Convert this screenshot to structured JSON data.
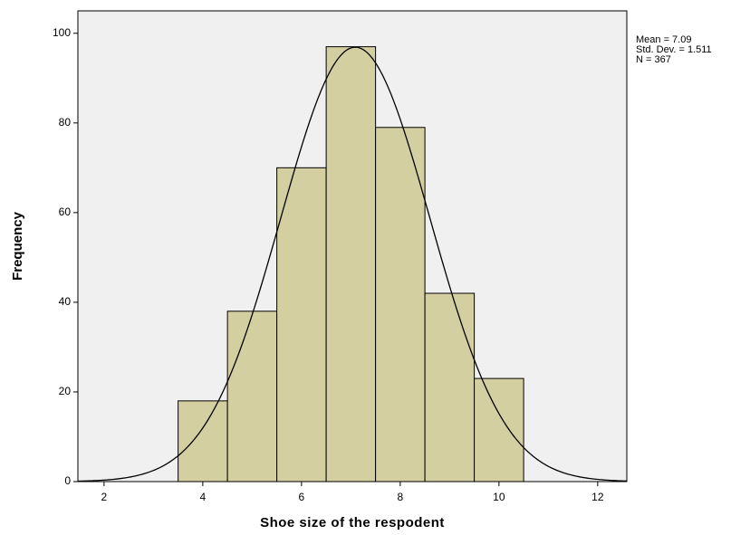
{
  "chart_data": {
    "type": "histogram",
    "x_label": "Shoe size of the respodent",
    "y_label": "Frequency",
    "bins": [
      3.5,
      4.5,
      5.5,
      6.5,
      7.5,
      8.5,
      9.5,
      10.5
    ],
    "values": [
      18,
      38,
      70,
      97,
      79,
      42,
      23
    ],
    "color": "#d4cfa1",
    "curve": "normal",
    "stats": [
      {
        "value": 7.09,
        "label": "Mean = 7.09"
      },
      {
        "value": 1.511,
        "label": "Std. Dev. = 1.511"
      },
      {
        "value": 367,
        "label": "N = 367"
      }
    ],
    "xlim": [
      1.47,
      12.59
    ],
    "xticks": [
      2,
      4,
      6,
      8,
      10,
      12
    ],
    "ylim": [
      0,
      105
    ],
    "yticks": [
      0,
      20,
      40,
      60,
      80,
      100
    ]
  }
}
